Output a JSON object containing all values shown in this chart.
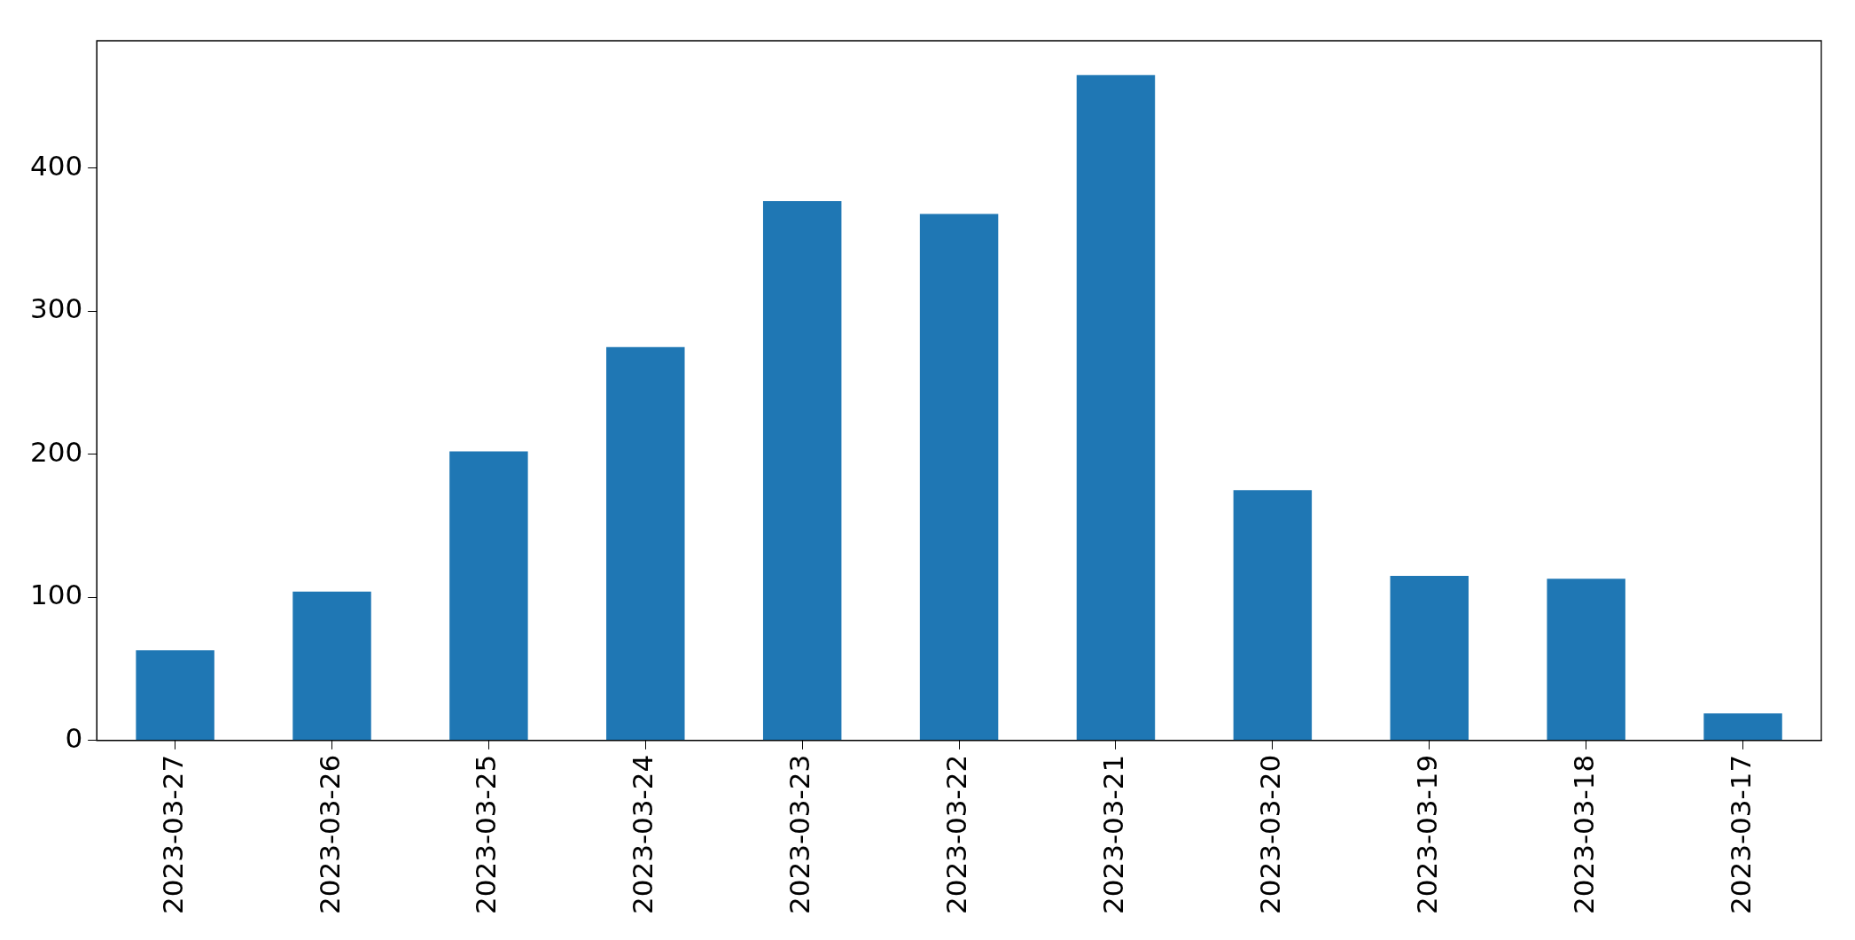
{
  "chart_data": {
    "type": "bar",
    "categories": [
      "2023-03-27",
      "2023-03-26",
      "2023-03-25",
      "2023-03-24",
      "2023-03-23",
      "2023-03-22",
      "2023-03-21",
      "2023-03-20",
      "2023-03-19",
      "2023-03-18",
      "2023-03-17"
    ],
    "values": [
      63,
      104,
      202,
      275,
      377,
      368,
      465,
      175,
      115,
      113,
      19
    ],
    "color": "#1f77b4",
    "ylim": [
      0,
      489
    ],
    "yticks": [
      0,
      100,
      200,
      300,
      400
    ],
    "grid": false,
    "legend": false
  }
}
